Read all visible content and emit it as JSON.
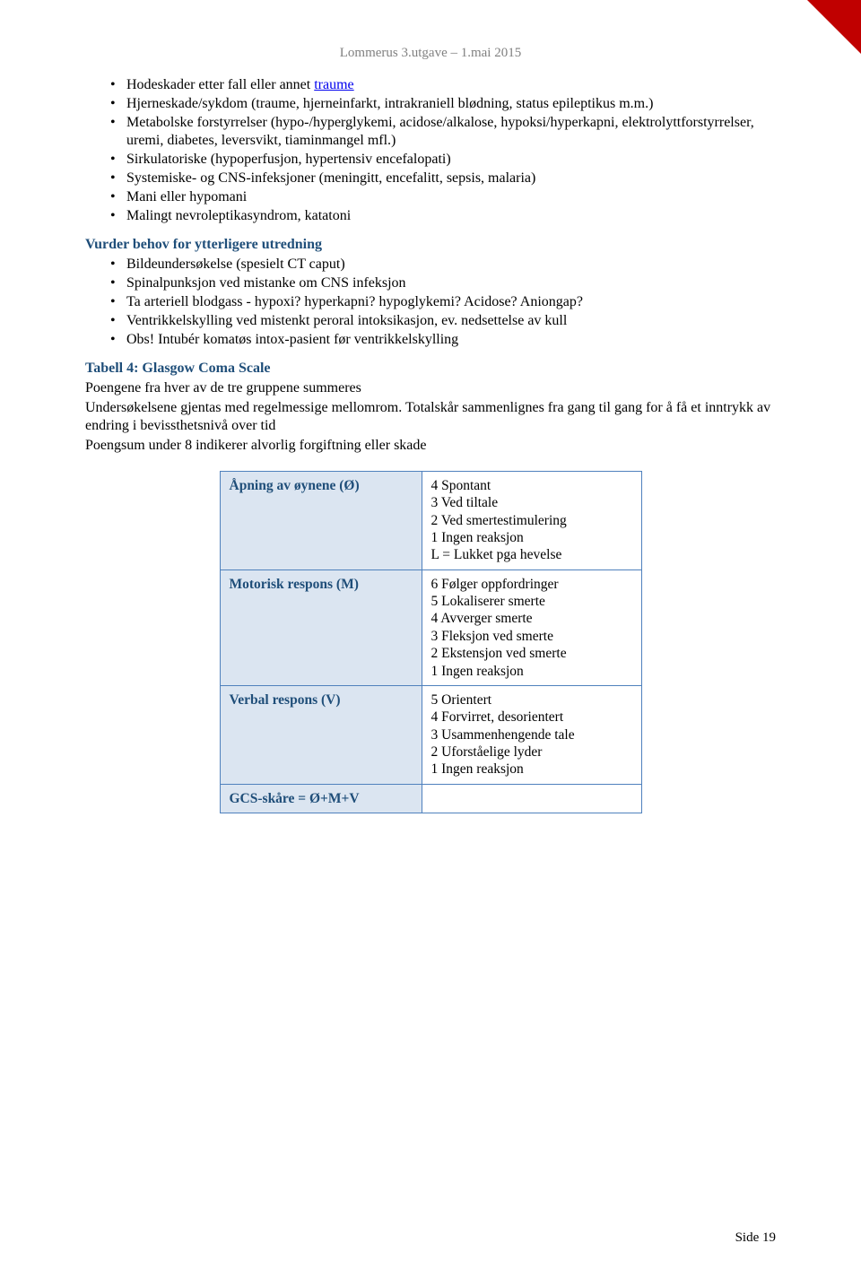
{
  "header": "Lommerus 3.utgave – 1.mai 2015",
  "corner_color": "#c00000",
  "list1": [
    {
      "pre": "Hodeskader etter fall eller annet ",
      "link": "traume"
    },
    {
      "text": "Hjerneskade/sykdom (traume, hjerneinfarkt, intrakraniell blødning, status epileptikus m.m.)"
    },
    {
      "text": "Metabolske forstyrrelser (hypo-/hyperglykemi, acidose/alkalose, hypoksi/hyperkapni, elektrolyttforstyrrelser, uremi, diabetes, leversvikt, tiaminmangel mfl.)"
    },
    {
      "text": "Sirkulatoriske (hypoperfusjon, hypertensiv encefalopati)"
    },
    {
      "text": "Systemiske- og CNS-infeksjoner (meningitt, encefalitt, sepsis, malaria)"
    },
    {
      "text": "Mani eller hypomani"
    },
    {
      "text": "Malingt nevroleptikasyndrom, katatoni"
    }
  ],
  "heading1": "Vurder behov for ytterligere utredning",
  "list2": [
    "Bildeundersøkelse (spesielt CT caput)",
    "Spinalpunksjon ved mistanke om CNS infeksjon",
    "Ta arteriell blodgass - hypoxi? hyperkapni? hypoglykemi? Acidose? Aniongap?",
    "Ventrikkelskylling ved mistenkt peroral intoksikasjon, ev. nedsettelse av kull",
    "Obs! Intubér komatøs intox-pasient før ventrikkelskylling"
  ],
  "heading2": "Tabell 4: Glasgow Coma Scale",
  "para_lines": [
    "Poengene fra hver av de tre gruppene summeres",
    "Undersøkelsene gjentas med regelmessige mellomrom. Totalskår sammenlignes fra gang til gang for å få et inntrykk av endring i bevissthetsnivå over tid",
    "Poengsum under 8 indikerer alvorlig forgiftning eller skade"
  ],
  "table": {
    "header_bg": "#dbe5f1",
    "border_color": "#4f81bd",
    "heading_color": "#1f4e79",
    "rows": [
      {
        "label": "Åpning av øynene (Ø)",
        "values": [
          "4 Spontant",
          "3 Ved tiltale",
          "2 Ved smertestimulering",
          "1 Ingen reaksjon",
          "L = Lukket pga hevelse"
        ]
      },
      {
        "label": "Motorisk respons (M)",
        "values": [
          "6 Følger oppfordringer",
          "5 Lokaliserer smerte",
          "4 Avverger smerte",
          "3 Fleksjon ved smerte",
          "2 Ekstensjon ved smerte",
          "1 Ingen reaksjon"
        ]
      },
      {
        "label": "Verbal respons (V)",
        "values": [
          "5 Orientert",
          "4 Forvirret, desorientert",
          "3 Usammenhengende tale",
          "2 Uforståelige lyder",
          "1 Ingen reaksjon"
        ]
      },
      {
        "label": "GCS-skåre = Ø+M+V",
        "values": null
      }
    ]
  },
  "footer": "Side 19"
}
